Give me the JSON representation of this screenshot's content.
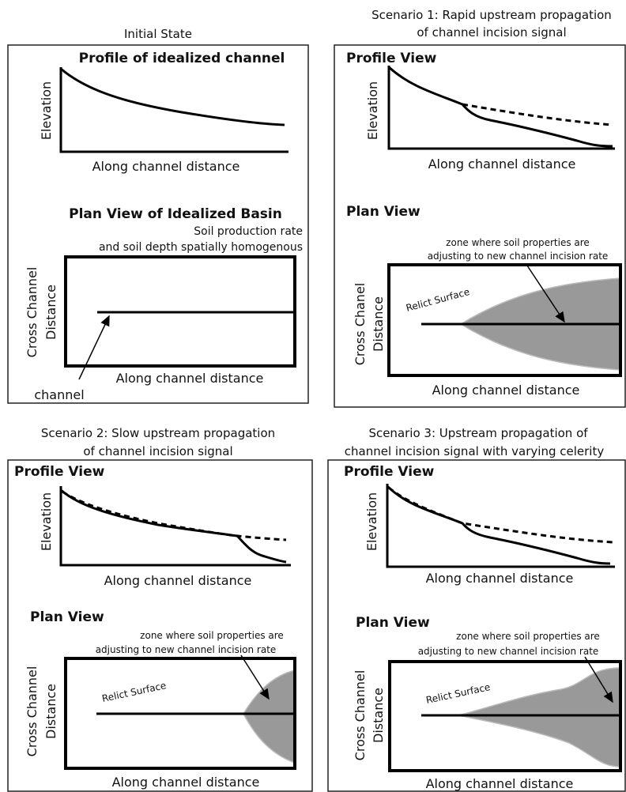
{
  "panels": [
    {
      "heading": [
        "Initial State"
      ],
      "profile_title": "Profile of idealized channel",
      "y_label": "Elevation",
      "x_label": "Along channel distance",
      "plan_title": "Plan View of Idealized Basin",
      "plan_note": [
        "Soil production rate",
        "and  soil depth spatially homogenous"
      ],
      "plan_y_label": [
        "Cross Channel",
        "Distance"
      ],
      "plan_x_label": "Along channel distance",
      "channel_label": "channel"
    },
    {
      "heading": [
        "Scenario 1: Rapid upstream propagation",
        "of channel incision signal"
      ],
      "profile_title": "Profile View",
      "y_label": "Elevation",
      "x_label": "Along channel distance",
      "plan_title": "Plan View",
      "plan_note": [
        "zone where soil properties are",
        "adjusting to new channel incision rate"
      ],
      "plan_y_label": [
        "Cross Chanel",
        "Distance"
      ],
      "plan_x_label": "Along channel distance",
      "surface_label": "Relict Surface"
    },
    {
      "heading": [
        "Scenario 2: Slow upstream propagation",
        "of channel incision signal"
      ],
      "profile_title": "Profile View",
      "y_label": "Elevation",
      "x_label": "Along channel distance",
      "plan_title": "Plan View",
      "plan_note": [
        "zone where soil properties are",
        "adjusting to new channel incision rate"
      ],
      "plan_y_label": [
        "Cross Channel",
        "Distance"
      ],
      "plan_x_label": "Along channel distance",
      "surface_label": "Relict Surface"
    },
    {
      "heading": [
        "Scenario 3: Upstream propagation of",
        "channel incision signal with varying celerity"
      ],
      "profile_title": "Profile View",
      "y_label": "Elevation",
      "x_label": "Along channel distance",
      "plan_title": "Plan View",
      "plan_note": [
        "zone where soil properties are",
        "adjusting to new channel incision rate"
      ],
      "plan_y_label": [
        "Cross Channel",
        "Distance"
      ],
      "plan_x_label": "Along channel distance",
      "surface_label": "Relict Surface"
    }
  ]
}
